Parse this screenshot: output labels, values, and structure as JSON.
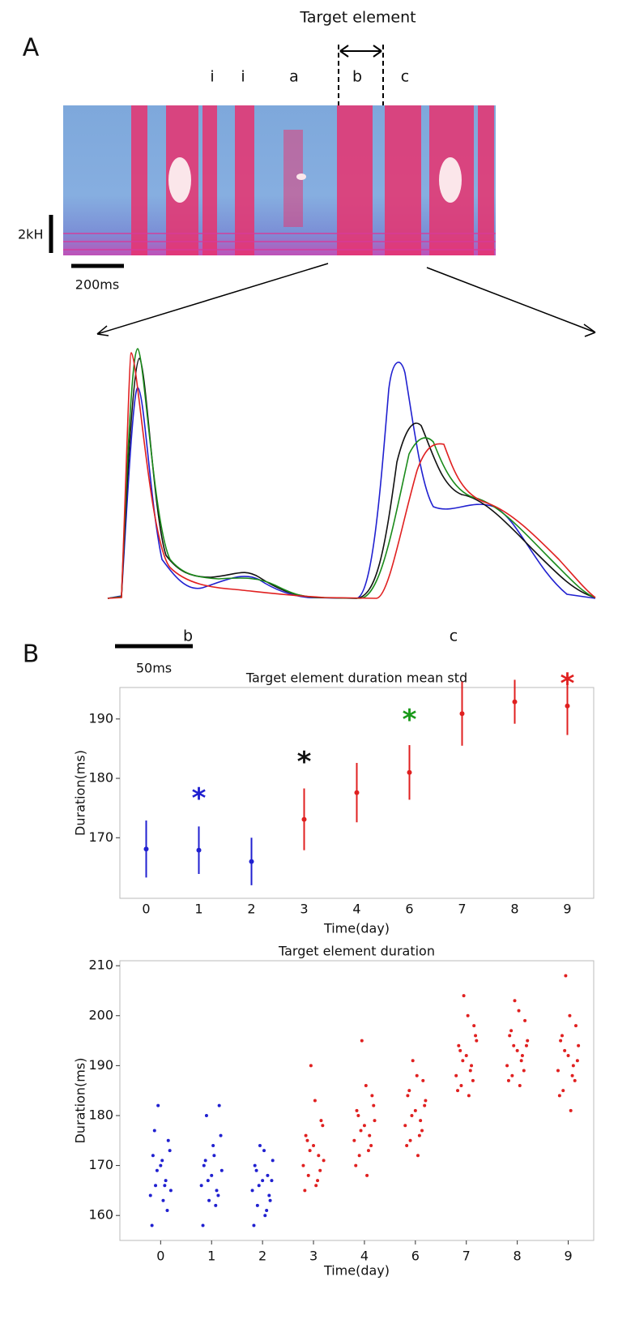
{
  "panel_a": {
    "label": "A",
    "target_label": "Target element",
    "syllables": [
      "i",
      "i",
      "a",
      "b",
      "c"
    ],
    "freq_scale": "2kH",
    "time_scale": "200ms",
    "zoom_labels": [
      "b",
      "c"
    ],
    "zoom_scale": "50ms"
  },
  "panel_b": {
    "label": "B"
  },
  "chart_data": [
    {
      "type": "errorbar",
      "title": "Target element duration mean std",
      "x_label": "Time(day)",
      "y_label": "Duration(ms)",
      "categories": [
        "0",
        "1",
        "2",
        "3",
        "4",
        "6",
        "7",
        "8",
        "9"
      ],
      "values": [
        168.1,
        167.9,
        166.0,
        173.1,
        177.6,
        181.0,
        190.9,
        192.9,
        192.2
      ],
      "errors": [
        4.8,
        4.0,
        4.0,
        5.2,
        5.0,
        4.6,
        5.4,
        3.7,
        4.9
      ],
      "colors": [
        "#2020d0",
        "#2020d0",
        "#2020d0",
        "#e02020",
        "#e02020",
        "#e02020",
        "#e02020",
        "#e02020",
        "#e02020"
      ],
      "ylim": [
        159.8,
        195.3
      ],
      "yticks": [
        170,
        180,
        190
      ],
      "annotations": [
        {
          "text": "*",
          "x": 1,
          "y": 177.5,
          "color": "#2020d0"
        },
        {
          "text": "*",
          "x": 3,
          "y": 183.6,
          "color": "#111111"
        },
        {
          "text": "*",
          "x": 5,
          "y": 190.7,
          "color": "#1a9a1a"
        },
        {
          "text": "*",
          "x": 8,
          "y": 196.8,
          "color": "#e02020"
        }
      ]
    },
    {
      "type": "scatter",
      "title": "Target element duration",
      "x_label": "Time(day)",
      "y_label": "Duration(ms)",
      "xlim": [
        -0.8,
        8.5
      ],
      "ylim": [
        155,
        211
      ],
      "xticks": [
        0,
        1,
        2,
        3,
        4,
        {
          "value": 5,
          "label": "6"
        },
        {
          "value": 6,
          "label": "7"
        },
        {
          "value": 7,
          "label": "8"
        },
        {
          "value": 8,
          "label": "9"
        }
      ],
      "yticks": [
        160,
        170,
        180,
        190,
        200,
        210
      ],
      "series": [
        {
          "color": "#2020d0",
          "x": [
            -0.2,
            -0.15,
            -0.1,
            -0.05,
            0,
            0.05,
            0.1,
            0.15,
            0.2,
            -0.17,
            -0.07,
            0.03,
            0.13,
            -0.12,
            0.08,
            0.18,
            0.8,
            0.85,
            0.9,
            0.95,
            1,
            1.05,
            1.1,
            1.15,
            1.2,
            0.83,
            0.93,
            1.03,
            1.13,
            0.88,
            1.08,
            1.18,
            1.8,
            1.85,
            1.9,
            1.95,
            2,
            2.05,
            2.1,
            2.15,
            2.2,
            1.83,
            1.93,
            2.03,
            2.13,
            1.88,
            2.08,
            2.18
          ],
          "values": [
            164,
            172,
            166,
            182,
            170,
            163,
            167,
            175,
            165,
            158,
            169,
            171,
            161,
            177,
            166,
            173,
            166,
            170,
            180,
            163,
            168,
            172,
            165,
            182,
            169,
            158,
            167,
            174,
            164,
            171,
            162,
            176,
            165,
            170,
            162,
            174,
            167,
            160,
            168,
            163,
            171,
            158,
            166,
            173,
            164,
            169,
            161,
            167
          ]
        },
        {
          "color": "#e02020",
          "x": [
            2.8,
            2.85,
            2.9,
            2.95,
            3,
            3.05,
            3.1,
            3.15,
            3.2,
            2.83,
            2.93,
            3.03,
            3.13,
            2.88,
            3.08,
            3.18,
            3.8,
            3.85,
            3.9,
            3.95,
            4,
            4.05,
            4.1,
            4.15,
            4.2,
            3.83,
            3.93,
            4.03,
            4.13,
            3.88,
            4.08,
            4.18,
            4.8,
            4.85,
            4.9,
            4.95,
            5,
            5.05,
            5.1,
            5.15,
            5.2,
            4.83,
            4.93,
            5.03,
            5.13,
            4.88,
            5.08,
            5.18,
            5.8,
            5.85,
            5.9,
            5.95,
            6,
            6.05,
            6.1,
            6.15,
            6.2,
            5.83,
            5.93,
            6.03,
            6.13,
            5.88,
            6.08,
            6.18,
            6.8,
            6.85,
            6.9,
            6.95,
            7,
            7.05,
            7.1,
            7.15,
            7.2,
            6.83,
            6.93,
            7.03,
            7.13,
            6.88,
            7.08,
            7.18,
            7.8,
            7.85,
            7.9,
            7.95,
            8,
            8.05,
            8.1,
            8.15,
            8.2,
            7.83,
            7.93,
            8.03,
            8.13,
            7.88,
            8.08,
            8.18
          ],
          "values": [
            170,
            176,
            168,
            190,
            174,
            166,
            172,
            179,
            171,
            165,
            173,
            183,
            169,
            175,
            167,
            178,
            175,
            181,
            172,
            195,
            178,
            168,
            176,
            184,
            179,
            170,
            177,
            186,
            174,
            180,
            173,
            182,
            178,
            184,
            175,
            191,
            181,
            172,
            179,
            187,
            183,
            174,
            180,
            188,
            177,
            185,
            176,
            182,
            188,
            194,
            186,
            204,
            192,
            184,
            190,
            198,
            195,
            185,
            191,
            200,
            187,
            193,
            189,
            196,
            190,
            196,
            188,
            203,
            193,
            186,
            192,
            199,
            195,
            187,
            194,
            201,
            189,
            197,
            191,
            194,
            189,
            195,
            185,
            208,
            192,
            181,
            190,
            198,
            194,
            184,
            193,
            200,
            187,
            196,
            188,
            191
          ]
        }
      ]
    }
  ]
}
